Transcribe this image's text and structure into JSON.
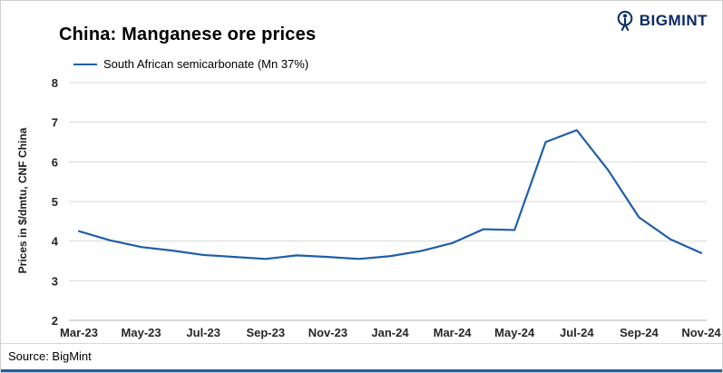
{
  "header": {
    "title": "China: Manganese ore prices",
    "logo_text": "BIGMINT"
  },
  "footer": {
    "source": "Source: BigMint"
  },
  "colors": {
    "line": "#1f5ea8",
    "grid": "#d9d9d9",
    "bottom_axis": "#b3b3b3",
    "logo": "#0a2a66",
    "accent_bottom": "#1f5ea8"
  },
  "chart_data": {
    "type": "line",
    "title": "China: Manganese ore prices",
    "xlabel": "",
    "ylabel": "Prices in $/dmtu, CNF China",
    "ylim": [
      2,
      8
    ],
    "yticks": [
      2,
      3,
      4,
      5,
      6,
      7,
      8
    ],
    "grid": "horizontal",
    "legend_position": "top-left",
    "x": [
      "Mar-23",
      "Apr-23",
      "May-23",
      "Jun-23",
      "Jul-23",
      "Aug-23",
      "Sep-23",
      "Oct-23",
      "Nov-23",
      "Dec-23",
      "Jan-24",
      "Feb-24",
      "Mar-24",
      "Apr-24",
      "May-24",
      "Jun-24",
      "Jul-24",
      "Aug-24",
      "Sep-24",
      "Oct-24",
      "Nov-24"
    ],
    "xtick_labels": [
      "Mar-23",
      "May-23",
      "Jul-23",
      "Sep-23",
      "Nov-23",
      "Jan-24",
      "Mar-24",
      "May-24",
      "Jul-24",
      "Sep-24",
      "Nov-24"
    ],
    "series": [
      {
        "name": "South African semicarbonate (Mn 37%)",
        "values": [
          4.25,
          4.02,
          3.85,
          3.76,
          3.65,
          3.6,
          3.55,
          3.64,
          3.6,
          3.55,
          3.62,
          3.75,
          3.95,
          4.3,
          4.28,
          6.5,
          6.8,
          5.8,
          4.6,
          4.05,
          3.7
        ]
      }
    ]
  }
}
